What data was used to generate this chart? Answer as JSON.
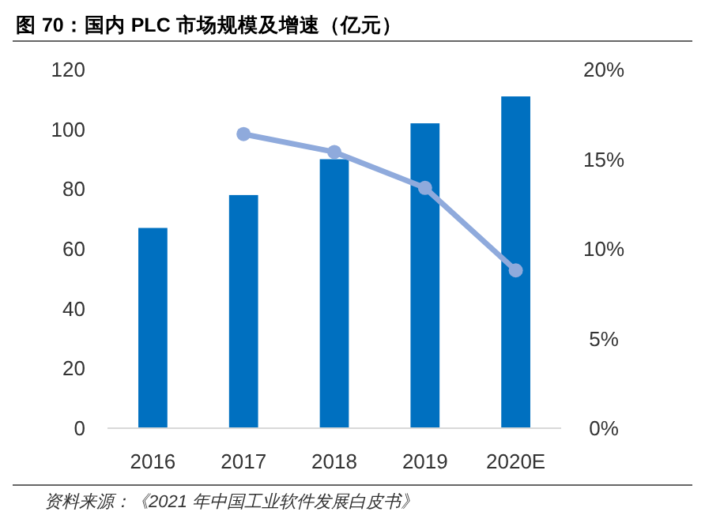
{
  "chart_data": {
    "type": "bar",
    "title": "图 70：国内 PLC 市场规模及增速（亿元）",
    "annotations": [
      "资料来源：《2021 年中国工业软件发展白皮书》"
    ],
    "categories": [
      "2016",
      "2017",
      "2018",
      "2019",
      "2020E"
    ],
    "series": [
      {
        "color": "#0070c0",
        "values": [
          67,
          78,
          90,
          102,
          111
        ]
      },
      {
        "type": "line",
        "axis": "y2",
        "color": "#8faadc",
        "values": [
          null,
          16.4,
          15.4,
          13.4,
          8.8
        ]
      }
    ],
    "ylim": [
      0,
      120
    ],
    "yticks": [
      0,
      20,
      40,
      60,
      80,
      100,
      120
    ],
    "y2lim": [
      0,
      20
    ],
    "y2ticks": [
      {
        "value": 0,
        "label": "0%"
      },
      {
        "value": 5,
        "label": "5%"
      },
      {
        "value": 10,
        "label": "10%"
      },
      {
        "value": 15,
        "label": "15%"
      },
      {
        "value": 20,
        "label": "20%"
      }
    ],
    "grid": false,
    "marker": "circle",
    "line_style": "solid"
  }
}
